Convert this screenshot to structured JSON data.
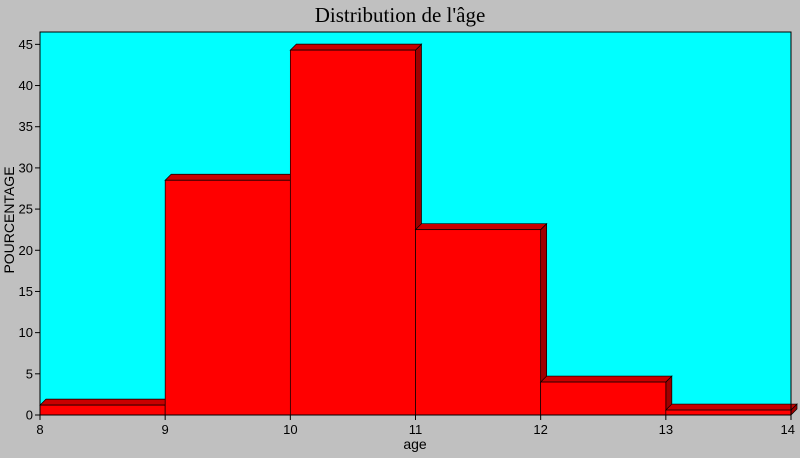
{
  "chart_data": {
    "type": "bar",
    "title": "Distribution de l'âge",
    "xlabel": "age",
    "ylabel": "POURCENTAGE",
    "bins": [
      {
        "x0": 8,
        "x1": 9,
        "value": 1.2
      },
      {
        "x0": 9,
        "x1": 10,
        "value": 28.5
      },
      {
        "x0": 10,
        "x1": 11,
        "value": 44.3
      },
      {
        "x0": 11,
        "x1": 12,
        "value": 22.5
      },
      {
        "x0": 12,
        "x1": 13,
        "value": 4.0
      },
      {
        "x0": 13,
        "x1": 14,
        "value": 0.6
      }
    ],
    "xticks": [
      "8",
      "9",
      "10",
      "11",
      "12",
      "13",
      "14"
    ],
    "yticks": [
      "0",
      "5",
      "10",
      "15",
      "20",
      "25",
      "30",
      "35",
      "40",
      "45"
    ],
    "xlim": [
      8,
      14
    ],
    "ylim": [
      0,
      46.5
    ],
    "grid": false,
    "colors": {
      "bar_face": "#ff0000",
      "bar_side": "#a00000",
      "bar_top": "#c80000",
      "plot_background": "#00ffff",
      "frame_background": "#c0c0c0"
    }
  }
}
